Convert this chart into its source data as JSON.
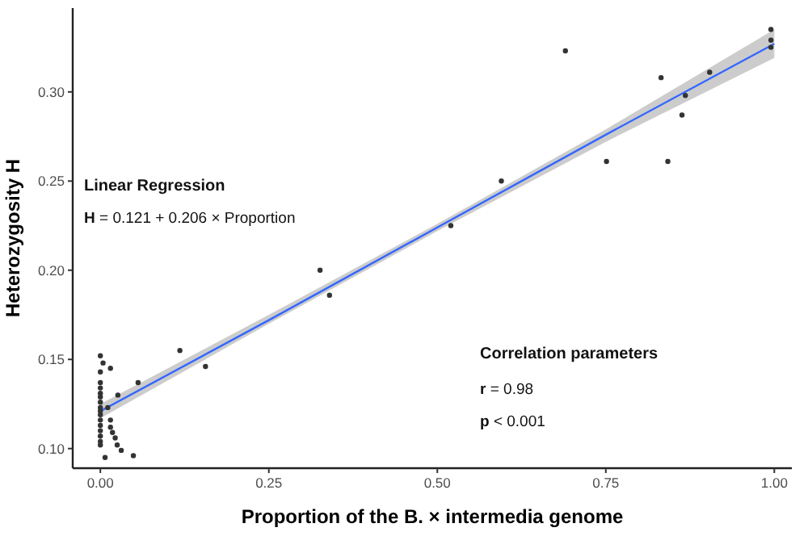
{
  "chart_data": {
    "type": "scatter",
    "xlabel": "Proportion of the B. × intermedia genome",
    "ylabel": "Heterozygosity H",
    "xlim": [
      -0.041,
      1.026
    ],
    "ylim": [
      0.089,
      0.347
    ],
    "xticks": [
      {
        "value": 0,
        "label": "0.00"
      },
      0.25,
      {
        "value": 0.5,
        "label": "0.50"
      },
      0.75,
      {
        "value": 1,
        "label": "1.00"
      }
    ],
    "yticks": [
      {
        "value": 0.1,
        "label": "0.10"
      },
      0.15,
      {
        "value": 0.2,
        "label": "0.20"
      },
      0.25,
      {
        "value": 0.3,
        "label": "0.30"
      }
    ],
    "grid": false,
    "marker": "circle",
    "annotations": [
      "Linear Regression",
      "H = 0.121 + 0.206 × Proportion",
      "Correlation parameters",
      "r = 0.98",
      "p < 0.001"
    ],
    "series": [
      {
        "color": "#333333",
        "x": [
          0.69,
          0.832,
          0.904,
          0.868,
          0.863,
          0.751,
          0.842,
          0.595,
          0.52,
          0.995,
          0.995,
          0.995,
          0.326,
          0.34,
          0.118,
          0.156,
          0.056,
          0.026,
          0.015,
          0.004,
          0,
          0,
          0,
          0,
          0,
          0,
          0,
          0,
          0,
          0,
          0,
          0,
          0,
          0,
          0,
          0,
          0.015,
          0.015,
          0.018,
          0.022,
          0.025,
          0.031,
          0.007,
          0.049,
          0.011
        ],
        "values": [
          0.323,
          0.308,
          0.311,
          0.298,
          0.287,
          0.261,
          0.261,
          0.25,
          0.225,
          0.335,
          0.329,
          0.325,
          0.2,
          0.186,
          0.155,
          0.146,
          0.137,
          0.13,
          0.145,
          0.148,
          0.152,
          0.143,
          0.137,
          0.134,
          0.131,
          0.129,
          0.126,
          0.123,
          0.121,
          0.119,
          0.116,
          0.113,
          0.11,
          0.107,
          0.104,
          0.102,
          0.116,
          0.112,
          0.109,
          0.106,
          0.102,
          0.099,
          0.095,
          0.096,
          0.123
        ]
      },
      {
        "type": "line",
        "marker": "none",
        "color": "#3366ff",
        "x": [
          0,
          0.25,
          0.5,
          0.75,
          1
        ],
        "values": [
          0.121,
          0.172,
          0.224,
          0.276,
          0.327
        ],
        "lower": [
          0.117,
          0.17,
          0.222,
          0.272,
          0.319
        ],
        "upper": [
          0.125,
          0.175,
          0.226,
          0.279,
          0.335
        ]
      }
    ]
  }
}
